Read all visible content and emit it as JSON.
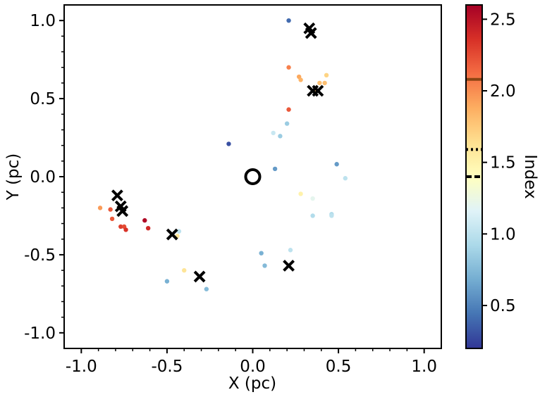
{
  "chart_data": {
    "type": "scatter",
    "xlabel": "X (pc)",
    "ylabel": "Y (pc)",
    "xlim": [
      -1.1,
      1.1
    ],
    "ylim": [
      -1.1,
      1.1
    ],
    "xticks": [
      -1.0,
      -0.5,
      0.0,
      0.5,
      1.0
    ],
    "xtick_labels": [
      "-1.0",
      "-0.5",
      "0.0",
      "0.5",
      "1.0"
    ],
    "yticks": [
      -1.0,
      -0.5,
      0.0,
      0.5,
      1.0
    ],
    "ytick_labels": [
      "-1.0",
      "-0.5",
      "0.0",
      "0.5",
      "1.0"
    ],
    "colorbar": {
      "label": "Index",
      "range": [
        0.2,
        2.6
      ],
      "ticks": [
        0.5,
        1.0,
        1.5,
        2.0,
        2.5
      ],
      "tick_labels": [
        "0.5",
        "1.0",
        "1.5",
        "2.0",
        "2.5"
      ],
      "colormap": "RdYlBu_r",
      "markers": [
        {
          "value": 2.08,
          "style": "solid",
          "color": "#8b4513"
        },
        {
          "value": 1.59,
          "style": "dotted",
          "color": "#000000"
        },
        {
          "value": 1.4,
          "style": "dashed",
          "color": "#000000"
        }
      ]
    },
    "center_marker": {
      "x": 0.0,
      "y": 0.0,
      "symbol": "open-circle"
    },
    "points": [
      {
        "x": 0.21,
        "y": 1.0,
        "c": 0.4
      },
      {
        "x": 0.21,
        "y": 0.7,
        "c": 2.05
      },
      {
        "x": 0.27,
        "y": 0.64,
        "c": 1.9
      },
      {
        "x": 0.28,
        "y": 0.62,
        "c": 1.85
      },
      {
        "x": 0.39,
        "y": 0.6,
        "c": 1.8
      },
      {
        "x": 0.43,
        "y": 0.65,
        "c": 1.7
      },
      {
        "x": 0.42,
        "y": 0.6,
        "c": 1.8
      },
      {
        "x": 0.36,
        "y": 0.55,
        "c": 1.75
      },
      {
        "x": 0.21,
        "y": 0.43,
        "c": 2.2
      },
      {
        "x": 0.2,
        "y": 0.34,
        "c": 0.85
      },
      {
        "x": 0.12,
        "y": 0.28,
        "c": 1.05
      },
      {
        "x": 0.16,
        "y": 0.26,
        "c": 0.85
      },
      {
        "x": -0.14,
        "y": 0.21,
        "c": 0.3
      },
      {
        "x": 0.13,
        "y": 0.05,
        "c": 0.6
      },
      {
        "x": 0.49,
        "y": 0.08,
        "c": 0.6
      },
      {
        "x": 0.54,
        "y": -0.01,
        "c": 1.0
      },
      {
        "x": 0.28,
        "y": -0.11,
        "c": 1.5
      },
      {
        "x": 0.35,
        "y": -0.14,
        "c": 1.2
      },
      {
        "x": 0.46,
        "y": -0.24,
        "c": 0.95
      },
      {
        "x": 0.46,
        "y": -0.25,
        "c": 1.0
      },
      {
        "x": 0.35,
        "y": -0.25,
        "c": 0.95
      },
      {
        "x": 0.22,
        "y": -0.47,
        "c": 1.0
      },
      {
        "x": 0.05,
        "y": -0.49,
        "c": 0.7
      },
      {
        "x": 0.07,
        "y": -0.57,
        "c": 0.75
      },
      {
        "x": -0.89,
        "y": -0.2,
        "c": 1.95
      },
      {
        "x": -0.83,
        "y": -0.21,
        "c": 2.2
      },
      {
        "x": -0.82,
        "y": -0.27,
        "c": 2.2
      },
      {
        "x": -0.77,
        "y": -0.32,
        "c": 2.3
      },
      {
        "x": -0.75,
        "y": -0.32,
        "c": 2.25
      },
      {
        "x": -0.74,
        "y": -0.34,
        "c": 2.35
      },
      {
        "x": -0.63,
        "y": -0.28,
        "c": 2.55
      },
      {
        "x": -0.61,
        "y": -0.33,
        "c": 2.4
      },
      {
        "x": -0.43,
        "y": -0.35,
        "c": 1.0
      },
      {
        "x": -0.44,
        "y": -0.38,
        "c": 1.6
      },
      {
        "x": -0.4,
        "y": -0.6,
        "c": 1.6
      },
      {
        "x": -0.5,
        "y": -0.67,
        "c": 0.7
      },
      {
        "x": -0.27,
        "y": -0.72,
        "c": 0.75
      }
    ],
    "x_markers": [
      {
        "x": 0.33,
        "y": 0.95
      },
      {
        "x": 0.34,
        "y": 0.92
      },
      {
        "x": 0.35,
        "y": 0.55
      },
      {
        "x": 0.38,
        "y": 0.55
      },
      {
        "x": -0.79,
        "y": -0.12
      },
      {
        "x": -0.77,
        "y": -0.19
      },
      {
        "x": -0.76,
        "y": -0.22
      },
      {
        "x": -0.47,
        "y": -0.37
      },
      {
        "x": -0.31,
        "y": -0.64
      },
      {
        "x": 0.21,
        "y": -0.57
      }
    ]
  }
}
